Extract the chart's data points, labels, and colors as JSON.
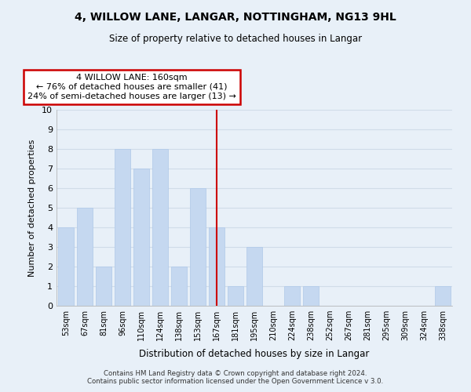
{
  "title": "4, WILLOW LANE, LANGAR, NOTTINGHAM, NG13 9HL",
  "subtitle": "Size of property relative to detached houses in Langar",
  "xlabel": "Distribution of detached houses by size in Langar",
  "ylabel": "Number of detached properties",
  "categories": [
    "53sqm",
    "67sqm",
    "81sqm",
    "96sqm",
    "110sqm",
    "124sqm",
    "138sqm",
    "153sqm",
    "167sqm",
    "181sqm",
    "195sqm",
    "210sqm",
    "224sqm",
    "238sqm",
    "252sqm",
    "267sqm",
    "281sqm",
    "295sqm",
    "309sqm",
    "324sqm",
    "338sqm"
  ],
  "values": [
    4,
    5,
    2,
    8,
    7,
    8,
    2,
    6,
    4,
    1,
    3,
    0,
    1,
    1,
    0,
    0,
    0,
    0,
    0,
    0,
    1
  ],
  "bar_color": "#c5d8f0",
  "bar_edge_color": "#aec8e8",
  "reference_line_x": 8.0,
  "reference_line_color": "#cc0000",
  "annotation_title": "4 WILLOW LANE: 160sqm",
  "annotation_line1": "← 76% of detached houses are smaller (41)",
  "annotation_line2": "24% of semi-detached houses are larger (13) →",
  "annotation_box_color": "#ffffff",
  "annotation_box_edge_color": "#cc0000",
  "ylim": [
    0,
    10
  ],
  "yticks": [
    0,
    1,
    2,
    3,
    4,
    5,
    6,
    7,
    8,
    9,
    10
  ],
  "grid_color": "#d0dce8",
  "bg_color": "#e8f0f8",
  "footer1": "Contains HM Land Registry data © Crown copyright and database right 2024.",
  "footer2": "Contains public sector information licensed under the Open Government Licence v 3.0."
}
